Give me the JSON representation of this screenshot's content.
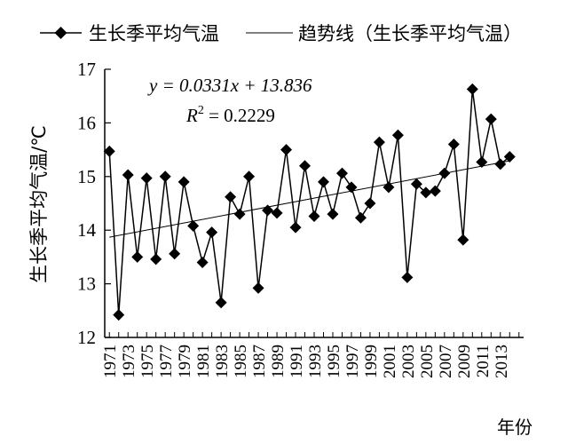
{
  "chart_data": {
    "type": "line",
    "ylabel": "生长季平均气温/℃",
    "xlabel": "年份",
    "ylim": [
      12,
      17
    ],
    "yticks": [
      "12",
      "13",
      "14",
      "15",
      "16",
      "17"
    ],
    "xticks": [
      "1971",
      "1973",
      "1975",
      "1977",
      "1979",
      "1981",
      "1983",
      "1985",
      "1987",
      "1989",
      "1991",
      "1993",
      "1995",
      "1997",
      "1999",
      "2001",
      "2003",
      "2005",
      "2007",
      "2009",
      "2011",
      "2013"
    ],
    "x": [
      1971,
      1972,
      1973,
      1974,
      1975,
      1976,
      1977,
      1978,
      1979,
      1980,
      1981,
      1982,
      1983,
      1984,
      1985,
      1986,
      1987,
      1988,
      1989,
      1990,
      1991,
      1992,
      1993,
      1994,
      1995,
      1996,
      1997,
      1998,
      1999,
      2000,
      2001,
      2002,
      2003,
      2004,
      2005,
      2006,
      2007,
      2008,
      2009,
      2010,
      2011,
      2012,
      2013,
      2014
    ],
    "series": [
      {
        "name": "生长季平均气温",
        "marker": "diamond",
        "color": "#000000",
        "values": [
          15.47,
          12.42,
          15.03,
          13.5,
          14.97,
          13.46,
          15.0,
          13.56,
          14.9,
          14.08,
          13.4,
          13.96,
          12.65,
          14.62,
          14.3,
          15.0,
          12.92,
          14.37,
          14.32,
          15.5,
          14.05,
          15.2,
          14.26,
          14.9,
          14.3,
          15.06,
          14.8,
          14.23,
          14.5,
          15.64,
          14.8,
          15.77,
          13.12,
          14.86,
          14.7,
          14.73,
          15.06,
          15.6,
          13.82,
          16.63,
          15.27,
          16.07,
          15.23,
          15.37
        ]
      }
    ],
    "trendline": {
      "name": "趋势线（生长季平均气温）",
      "color": "#000000",
      "equation": "y = 0.0331x + 13.836",
      "r_squared": "R 2 = 0.2229",
      "slope": 0.0331,
      "intercept": 13.836
    },
    "legend_placement": "top",
    "grid": false
  }
}
